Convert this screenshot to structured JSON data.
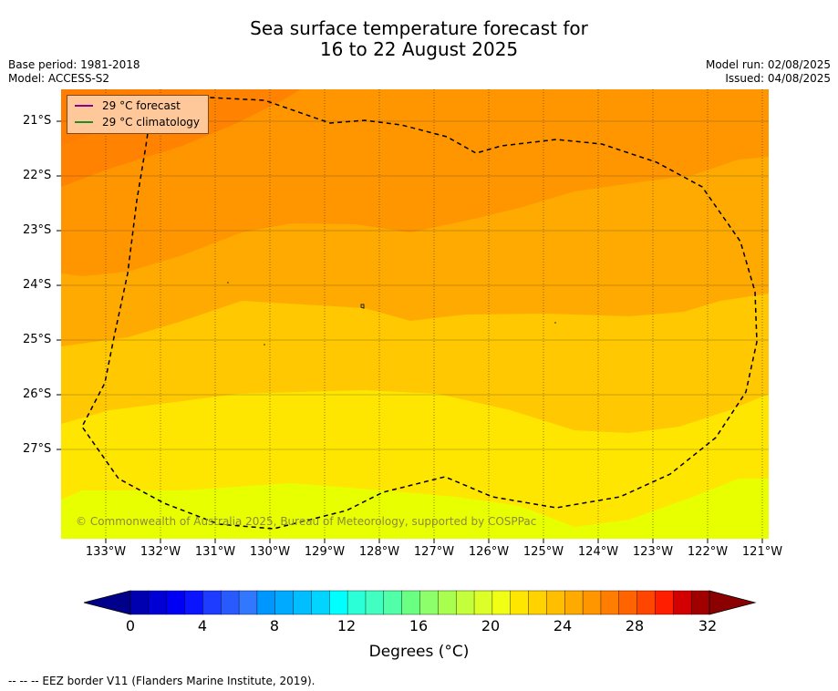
{
  "title_line1": "Sea surface temperature forecast for",
  "title_line2": "16 to 22 August 2025",
  "base_period": "Base period: 1981-2018",
  "model": "Model: ACCESS-S2",
  "model_run": "Model run: 02/08/2025",
  "issued": "Issued: 04/08/2025",
  "legend": [
    {
      "label": "29 °C  forecast",
      "color": "#8b008b"
    },
    {
      "label": "29 °C  climatology",
      "color": "#228b22"
    }
  ],
  "lat_ticks": [
    "21°S",
    "22°S",
    "23°S",
    "24°S",
    "25°S",
    "26°S",
    "27°S"
  ],
  "lon_ticks": [
    "133°W",
    "132°W",
    "131°W",
    "130°W",
    "129°W",
    "128°W",
    "127°W",
    "126°W",
    "125°W",
    "124°W",
    "123°W",
    "122°W",
    "121°W"
  ],
  "copyright": "© Commonwealth of Australia 2025, Bureau of Meteorology, supported by COSPPac",
  "colorbar": {
    "min": 0,
    "max": 32,
    "step": 1,
    "tick_labels": [
      "0",
      "4",
      "8",
      "12",
      "16",
      "20",
      "24",
      "28",
      "32"
    ],
    "label": "Degrees (°C)",
    "colors": [
      "#00008b",
      "#0000b0",
      "#0000d5",
      "#0000f5",
      "#0a14ff",
      "#1e3cff",
      "#285aff",
      "#3278ff",
      "#0096ff",
      "#00aaff",
      "#00beff",
      "#00d4ff",
      "#00ffff",
      "#2affd8",
      "#40ffc0",
      "#50ffa8",
      "#6aff82",
      "#8cff6a",
      "#a8ff50",
      "#c4ff3c",
      "#dcff28",
      "#f0ff14",
      "#ffe600",
      "#ffd200",
      "#ffbe00",
      "#ffaa00",
      "#ff9600",
      "#ff7d00",
      "#ff6400",
      "#ff4600",
      "#ff1e00",
      "#d20000",
      "#a00000",
      "#8b0000"
    ]
  },
  "footnote": "--  --  -- EEZ border V11 (Flanders Marine Institute, 2019).",
  "map_data": {
    "lon_range": [
      -133.8,
      -120.9
    ],
    "lat_range": [
      -28.6,
      -20.4
    ],
    "bands_degC": [
      29,
      28,
      27,
      26,
      25,
      24,
      23
    ]
  }
}
